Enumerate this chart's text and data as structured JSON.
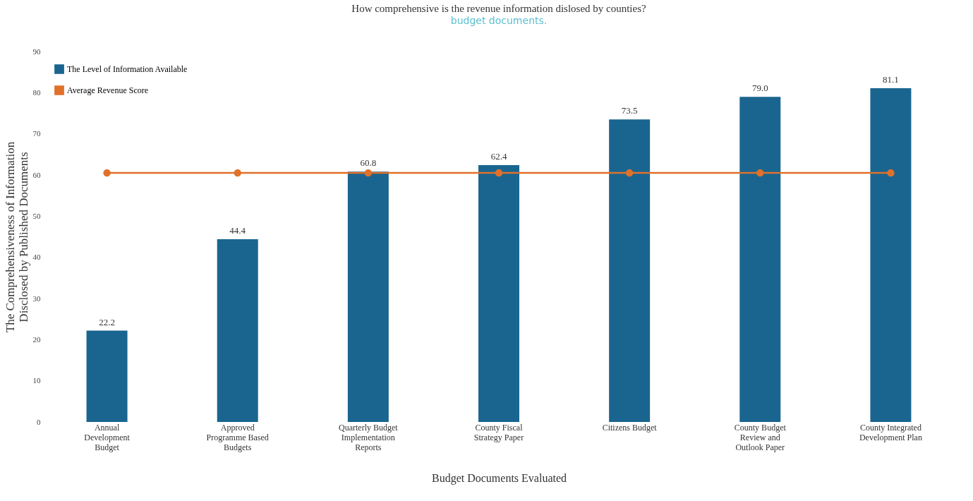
{
  "chart_data": {
    "type": "bar",
    "title": "How comprehensive is the revenue information dislosed by counties?",
    "annotations": [
      "budget documents."
    ],
    "xlabel": "Budget Documents Evaluated",
    "ylabel": "The Comprehensiveness  of Information\nDisclosed by Published Documents",
    "categories": [
      "Annual\nDevelopment\nBudget",
      "Approved\nProgramme Based\nBudgets",
      "Quarterly Budget\nImplementation\nReports",
      "County Fiscal\nStrategy Paper",
      "Citizens Budget",
      "County Budget\nReview and\nOutlook Paper",
      "County Integrated\nDevelopment Plan"
    ],
    "series": [
      {
        "name": "The Level of Information Available",
        "color": "#1a6590",
        "values": [
          22.2,
          44.4,
          60.8,
          62.4,
          73.5,
          79.0,
          81.1
        ],
        "value_labels": [
          "22.2",
          "44.4",
          "60.8",
          "62.4",
          "73.5",
          "79.0",
          "81.1"
        ]
      },
      {
        "name": "Average Revenue Score",
        "type": "line",
        "color": "#e0712a",
        "marker": "circle",
        "line_style": "solid",
        "values": [
          60.5,
          60.5,
          60.5,
          60.5,
          60.5,
          60.5,
          60.5
        ]
      }
    ],
    "ylim": [
      0,
      90
    ],
    "yticks": [
      0,
      10,
      20,
      30,
      40,
      50,
      60,
      70,
      80,
      90
    ],
    "grid": false,
    "legend": "top left"
  }
}
